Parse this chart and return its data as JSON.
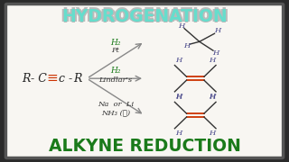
{
  "bg_color": "#2a2a2a",
  "board_bg": "#f8f6f2",
  "title_text": "HYDROGENATION",
  "title_color": "#66ddcc",
  "title_outline_color": "#999999",
  "bottom_text": "ALKYNE REDUCTION",
  "bottom_color": "#1a7a1a",
  "arrow1_label1": "H₂",
  "arrow1_label2": "Pt",
  "arrow2_label1": "H₂",
  "arrow2_label2": "Lindlar's",
  "arrow3_label1": "Na  or  Li",
  "arrow3_label2": "NH₃ (ℓ)",
  "alkyne_color": "#cc3300",
  "h_color": "#444488",
  "bond_color": "#333333",
  "arrow_color": "#888888",
  "label_color_green": "#1a7a1a",
  "label_color_dark": "#333333"
}
